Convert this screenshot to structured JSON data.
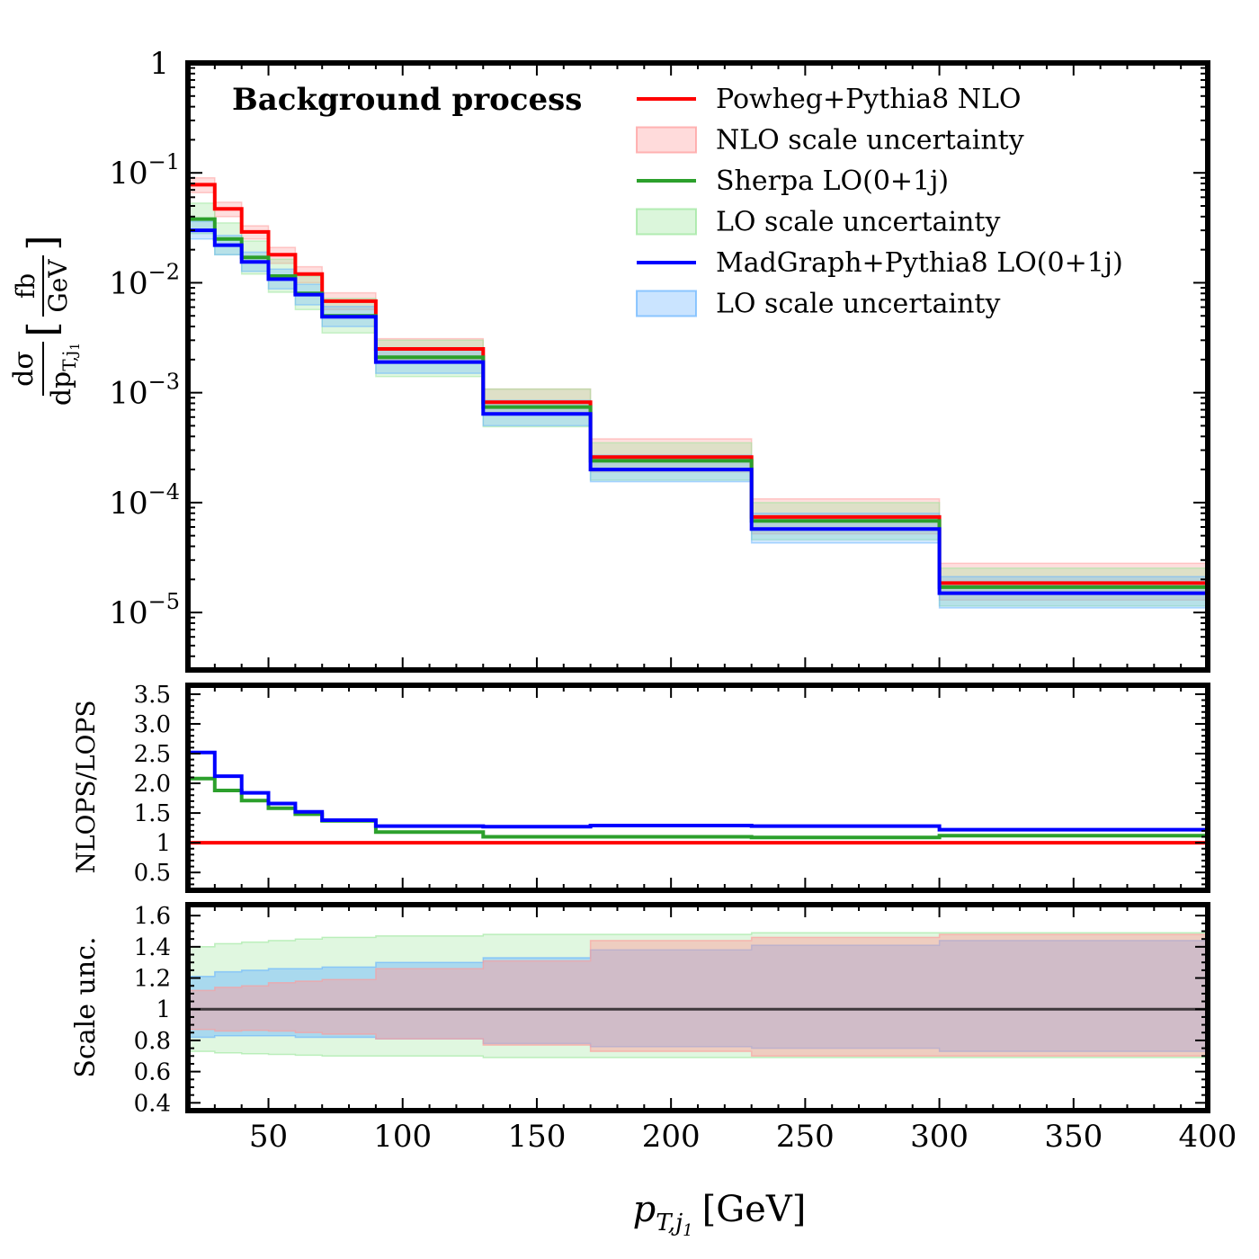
{
  "chart_data": {
    "type": "line",
    "title": "Background process",
    "xlabel_main": "p",
    "xlabel_sub": "T,j",
    "xlabel_subsub": "1",
    "xlabel_unit": "[GeV]",
    "xlim": [
      20,
      400
    ],
    "x_ticks": [
      50,
      100,
      150,
      200,
      250,
      300,
      350,
      400
    ],
    "bin_edges": [
      20,
      30,
      40,
      50,
      60,
      70,
      90,
      130,
      170,
      230,
      300,
      400
    ],
    "legend_position": "top-right",
    "legend": [
      {
        "label": "Powheg+Pythia8 NLO",
        "kind": "line",
        "color": "#ff0000"
      },
      {
        "label": "NLO scale uncertainty",
        "kind": "band",
        "color": "#ff9999"
      },
      {
        "label": "Sherpa LO(0+1j)",
        "kind": "line",
        "color": "#2ca02c"
      },
      {
        "label": "LO scale uncertainty",
        "kind": "band",
        "color": "#99e699"
      },
      {
        "label": "MadGraph+Pythia8 LO(0+1j)",
        "kind": "line",
        "color": "#0000ff"
      },
      {
        "label": "LO scale uncertainty",
        "kind": "band",
        "color": "#66b3ff"
      }
    ],
    "main_panel": {
      "yscale": "log",
      "ylim": [
        3e-06,
        1
      ],
      "ylabel_num": "dσ",
      "ylabel_den": "dp",
      "ylabel_den_sub": "T,j",
      "ylabel_den_subsub": "1",
      "ylabel_unit_num": "fb",
      "ylabel_unit_den": "GeV",
      "y_ticks": [
        {
          "value": 1,
          "base": "1",
          "exp": ""
        },
        {
          "value": 0.1,
          "base": "10",
          "exp": "−1"
        },
        {
          "value": 0.01,
          "base": "10",
          "exp": "−2"
        },
        {
          "value": 0.001,
          "base": "10",
          "exp": "−3"
        },
        {
          "value": 0.0001,
          "base": "10",
          "exp": "−4"
        },
        {
          "value": 1e-05,
          "base": "10",
          "exp": "−5"
        }
      ],
      "series": [
        {
          "name": "Powheg+Pythia8 NLO",
          "color": "#ff0000",
          "values": [
            0.078,
            0.047,
            0.029,
            0.018,
            0.012,
            0.0068,
            0.0025,
            0.00082,
            0.00026,
            7.4e-05,
            1.85e-05
          ],
          "band_low": [
            0.066,
            0.04,
            0.025,
            0.015,
            0.01,
            0.0057,
            0.002,
            0.00063,
            0.00019,
            5.2e-05,
            1.3e-05
          ],
          "band_high": [
            0.09,
            0.054,
            0.033,
            0.021,
            0.014,
            0.0081,
            0.0031,
            0.00108,
            0.00038,
            0.000108,
            2.8e-05
          ]
        },
        {
          "name": "Sherpa LO(0+1j)",
          "color": "#2ca02c",
          "values": [
            0.038,
            0.025,
            0.017,
            0.0115,
            0.008,
            0.005,
            0.0021,
            0.00074,
            0.00024,
            6.8e-05,
            1.7e-05
          ],
          "band_low": [
            0.028,
            0.018,
            0.012,
            0.0082,
            0.0057,
            0.0035,
            0.0014,
            0.00049,
            0.00016,
            4.6e-05,
            1.15e-05
          ],
          "band_high": [
            0.053,
            0.035,
            0.024,
            0.0164,
            0.0115,
            0.0072,
            0.003,
            0.00108,
            0.00035,
            0.0001,
            2.53e-05
          ]
        },
        {
          "name": "MadGraph+Pythia8 LO(0+1j)",
          "color": "#0000ff",
          "values": [
            0.03,
            0.022,
            0.0155,
            0.0108,
            0.0078,
            0.0049,
            0.0019,
            0.00064,
            0.0002,
            5.75e-05,
            1.5e-05
          ],
          "band_low": [
            0.025,
            0.018,
            0.0127,
            0.0088,
            0.0063,
            0.004,
            0.0015,
            0.0005,
            0.000155,
            4.3e-05,
            1.1e-05
          ],
          "band_high": [
            0.036,
            0.027,
            0.019,
            0.0133,
            0.0097,
            0.0061,
            0.0025,
            0.00085,
            0.00027,
            8e-05,
            2.12e-05
          ]
        }
      ]
    },
    "ratio_panel": {
      "ylabel": "NLOPS/LOPS",
      "ylim": [
        0.2,
        3.65
      ],
      "y_ticks": [
        {
          "value": 0.5,
          "label": "0.5"
        },
        {
          "value": 1.0,
          "label": "1"
        },
        {
          "value": 1.5,
          "label": "1.5"
        },
        {
          "value": 2.0,
          "label": "2.0"
        },
        {
          "value": 2.5,
          "label": "2.5"
        },
        {
          "value": 3.0,
          "label": "3.0"
        },
        {
          "value": 3.5,
          "label": "3.5"
        }
      ],
      "series": [
        {
          "name": "Powheg+Pythia8 NLO",
          "color": "#ff0000",
          "values": [
            1,
            1,
            1,
            1,
            1,
            1,
            1,
            1,
            1,
            1,
            1
          ]
        },
        {
          "name": "Sherpa LO(0+1j)",
          "color": "#2ca02c",
          "values": [
            2.08,
            1.88,
            1.71,
            1.58,
            1.48,
            1.37,
            1.18,
            1.1,
            1.1,
            1.09,
            1.12
          ]
        },
        {
          "name": "MadGraph+Pythia8 LO(0+1j)",
          "color": "#0000ff",
          "values": [
            2.52,
            2.12,
            1.84,
            1.66,
            1.52,
            1.38,
            1.28,
            1.27,
            1.29,
            1.28,
            1.22
          ]
        }
      ]
    },
    "scale_panel": {
      "ylabel": "Scale unc.",
      "ylim": [
        0.35,
        1.67
      ],
      "y_ticks": [
        {
          "value": 0.4,
          "label": "0.4"
        },
        {
          "value": 0.6,
          "label": "0.6"
        },
        {
          "value": 0.8,
          "label": "0.8"
        },
        {
          "value": 1.0,
          "label": "1"
        },
        {
          "value": 1.2,
          "label": "1.2"
        },
        {
          "value": 1.4,
          "label": "1.4"
        },
        {
          "value": 1.6,
          "label": "1.6"
        }
      ],
      "bands": [
        {
          "name": "Sherpa LO(0+1j)",
          "color": "#99e699",
          "low": [
            0.73,
            0.72,
            0.715,
            0.71,
            0.705,
            0.7,
            0.7,
            0.69,
            0.69,
            0.69,
            0.69
          ],
          "high": [
            1.4,
            1.42,
            1.43,
            1.44,
            1.45,
            1.46,
            1.47,
            1.48,
            1.48,
            1.49,
            1.49
          ]
        },
        {
          "name": "MadGraph+Pythia8 LO(0+1j)",
          "color": "#66b3ff",
          "low": [
            0.82,
            0.83,
            0.83,
            0.83,
            0.82,
            0.82,
            0.81,
            0.78,
            0.76,
            0.75,
            0.73
          ],
          "high": [
            1.21,
            1.24,
            1.25,
            1.26,
            1.26,
            1.27,
            1.3,
            1.33,
            1.38,
            1.41,
            1.44
          ]
        },
        {
          "name": "Powheg+Pythia8 NLO",
          "color": "#ff9999",
          "low": [
            0.87,
            0.86,
            0.865,
            0.86,
            0.85,
            0.84,
            0.81,
            0.77,
            0.73,
            0.7,
            0.7
          ],
          "high": [
            1.12,
            1.14,
            1.15,
            1.17,
            1.18,
            1.19,
            1.26,
            1.31,
            1.44,
            1.46,
            1.48
          ]
        }
      ],
      "reference_line": {
        "value": 1.0,
        "color": "#000000"
      }
    }
  }
}
